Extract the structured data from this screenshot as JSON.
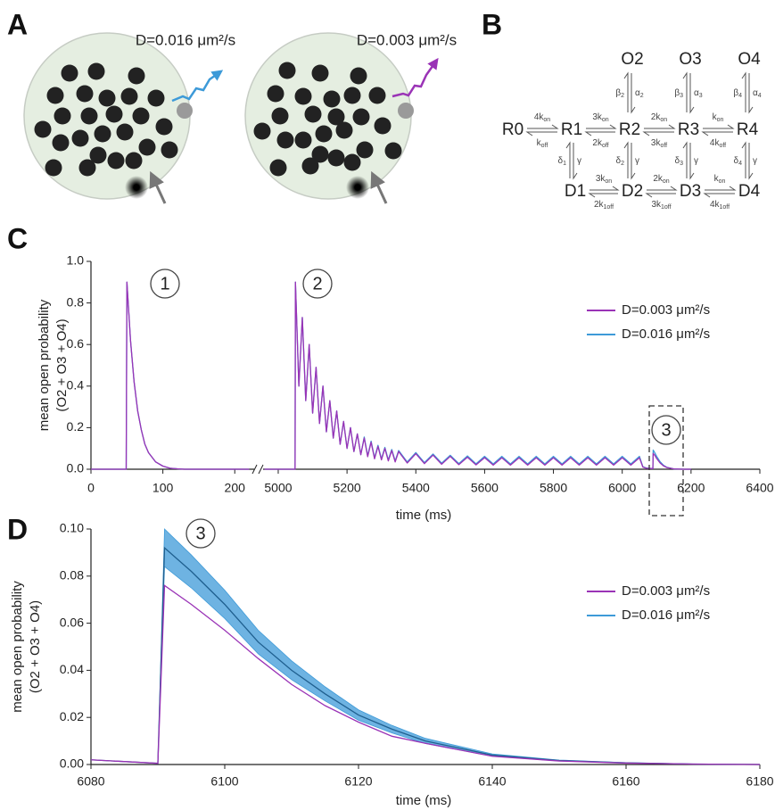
{
  "panel_labels": [
    "A",
    "B",
    "C",
    "D"
  ],
  "panel_a": {
    "captions": [
      "D=0.016 μm²/s",
      "D=0.003 μm²/s"
    ]
  },
  "panel_b": {
    "open_states": [
      "O2",
      "O3",
      "O4"
    ],
    "resting_states": [
      "R0",
      "R1",
      "R2",
      "R3",
      "R4"
    ],
    "desensitized_states": [
      "D1",
      "D2",
      "D3",
      "D4"
    ],
    "opening_rates": [
      [
        [
          "β",
          "2"
        ],
        [
          "α",
          "2"
        ]
      ],
      [
        [
          "β",
          "3"
        ],
        [
          "α",
          "3"
        ]
      ],
      [
        [
          "β",
          "4"
        ],
        [
          "α",
          "4"
        ]
      ]
    ],
    "binding_rates": [
      [
        [
          "4k",
          "on"
        ],
        [
          "k",
          "off"
        ]
      ],
      [
        [
          "3k",
          "on"
        ],
        [
          "2k",
          "off"
        ]
      ],
      [
        [
          "2k",
          "on"
        ],
        [
          "3k",
          "off"
        ]
      ],
      [
        [
          "k",
          "on"
        ],
        [
          "4k",
          "off"
        ]
      ]
    ],
    "desensitization_rates": [
      [
        [
          "δ",
          "1"
        ],
        [
          "γ"
        ]
      ],
      [
        [
          "δ",
          "2"
        ],
        [
          "γ"
        ]
      ],
      [
        [
          "δ",
          "3"
        ],
        [
          "γ"
        ]
      ],
      [
        [
          "δ",
          "4"
        ],
        [
          "γ"
        ]
      ]
    ],
    "desensitized_binding_rates": [
      [
        [
          "3k",
          "on"
        ],
        [
          "2k",
          "1off"
        ]
      ],
      [
        [
          "2k",
          "on"
        ],
        [
          "3k",
          "1off"
        ]
      ],
      [
        [
          "k",
          "on"
        ],
        [
          "4k",
          "1off"
        ]
      ]
    ]
  },
  "chart_data": [
    {
      "type": "line",
      "xlabel": "time (ms)",
      "ylabel": [
        "mean open probability",
        "(O2 + O3 + O4)"
      ],
      "x_segments": [
        {
          "xlim": [
            0,
            227
          ],
          "xticks": [
            0,
            100,
            200
          ]
        },
        {
          "xlim": [
            4956,
            6400
          ],
          "xticks": [
            5000,
            5200,
            5400,
            5600,
            5800,
            6000,
            6200,
            6400
          ]
        }
      ],
      "ylim": [
        0,
        1
      ],
      "yticks": [
        {
          "value": 0,
          "label": "0.0"
        },
        0.2,
        0.4,
        0.6,
        0.8,
        {
          "value": 1,
          "label": "1.0"
        }
      ],
      "annotations": [
        "1",
        "2",
        "3"
      ],
      "legend": "right",
      "x": [
        0,
        49,
        50,
        55,
        60,
        65,
        70,
        75,
        80,
        90,
        100,
        110,
        120,
        130,
        220,
        4960,
        5049,
        5050,
        5060,
        5070,
        5080,
        5090,
        5100,
        5110,
        5120,
        5130,
        5140,
        5150,
        5160,
        5170,
        5180,
        5190,
        5200,
        5210,
        5220,
        5230,
        5240,
        5250,
        5260,
        5270,
        5280,
        5290,
        5300,
        5310,
        5320,
        5330,
        5340,
        5350,
        5375,
        5400,
        5425,
        5450,
        5475,
        5500,
        5525,
        5550,
        5575,
        5600,
        5625,
        5650,
        5675,
        5700,
        5725,
        5750,
        5775,
        5800,
        5825,
        5850,
        5875,
        5900,
        5925,
        5950,
        5975,
        6000,
        6025,
        6050,
        6060,
        6070,
        6089,
        6090,
        6095,
        6100,
        6110,
        6120,
        6130,
        6150,
        6180,
        6200
      ],
      "series": [
        {
          "name": "D=0.003 μm²/s",
          "color": "#9a33b6",
          "values": [
            0,
            0,
            0.9,
            0.62,
            0.42,
            0.28,
            0.19,
            0.12,
            0.08,
            0.035,
            0.015,
            0.005,
            0.002,
            0,
            0,
            0,
            0,
            0.9,
            0.4,
            0.73,
            0.33,
            0.6,
            0.27,
            0.49,
            0.22,
            0.4,
            0.18,
            0.33,
            0.15,
            0.28,
            0.12,
            0.23,
            0.1,
            0.2,
            0.085,
            0.17,
            0.07,
            0.15,
            0.06,
            0.13,
            0.05,
            0.11,
            0.045,
            0.1,
            0.04,
            0.09,
            0.035,
            0.085,
            0.03,
            0.075,
            0.027,
            0.068,
            0.024,
            0.062,
            0.022,
            0.058,
            0.021,
            0.056,
            0.02,
            0.055,
            0.02,
            0.055,
            0.02,
            0.055,
            0.02,
            0.055,
            0.02,
            0.055,
            0.02,
            0.055,
            0.02,
            0.055,
            0.02,
            0.055,
            0.02,
            0.055,
            0.01,
            0.005,
            0.003,
            0.076,
            0.066,
            0.052,
            0.03,
            0.016,
            0.008,
            0.0015,
            0,
            0
          ]
        },
        {
          "name": "D=0.016 μm²/s",
          "color": "#3d9ad8",
          "values": [
            0,
            0,
            0.9,
            0.62,
            0.42,
            0.28,
            0.19,
            0.12,
            0.08,
            0.035,
            0.015,
            0.005,
            0.002,
            0,
            0,
            0,
            0,
            0.9,
            0.4,
            0.73,
            0.33,
            0.6,
            0.27,
            0.49,
            0.22,
            0.4,
            0.18,
            0.33,
            0.15,
            0.28,
            0.12,
            0.23,
            0.1,
            0.2,
            0.085,
            0.17,
            0.07,
            0.155,
            0.065,
            0.135,
            0.055,
            0.115,
            0.05,
            0.105,
            0.045,
            0.095,
            0.04,
            0.09,
            0.035,
            0.08,
            0.032,
            0.073,
            0.029,
            0.067,
            0.027,
            0.064,
            0.026,
            0.062,
            0.025,
            0.062,
            0.025,
            0.062,
            0.025,
            0.062,
            0.025,
            0.062,
            0.025,
            0.062,
            0.025,
            0.062,
            0.025,
            0.062,
            0.025,
            0.062,
            0.025,
            0.062,
            0.012,
            0.006,
            0.003,
            0.092,
            0.078,
            0.062,
            0.036,
            0.019,
            0.009,
            0.0017,
            0,
            0
          ]
        }
      ]
    },
    {
      "type": "line",
      "xlabel": "time (ms)",
      "ylabel": [
        "mean open probability",
        "(O2 + O3 + O4)"
      ],
      "xlim": [
        6080,
        6180
      ],
      "xticks": [
        6080,
        6100,
        6120,
        6140,
        6160,
        6180
      ],
      "ylim": [
        0,
        0.1
      ],
      "yticks": [
        {
          "value": 0,
          "label": "0.00"
        },
        {
          "value": 0.02,
          "label": "0.02"
        },
        {
          "value": 0.04,
          "label": "0.04"
        },
        {
          "value": 0.06,
          "label": "0.06"
        },
        {
          "value": 0.08,
          "label": "0.08"
        },
        {
          "value": 0.1,
          "label": "0.10"
        }
      ],
      "annotations": [
        "3"
      ],
      "legend": "right",
      "x": [
        6080,
        6090,
        6091,
        6095,
        6100,
        6105,
        6110,
        6115,
        6120,
        6125,
        6130,
        6140,
        6150,
        6160,
        6170,
        6180
      ],
      "series": [
        {
          "name": "D=0.003 μm²/s",
          "color": "#9a33b6",
          "values": [
            0.002,
            0.0005,
            0.076,
            0.068,
            0.057,
            0.045,
            0.034,
            0.025,
            0.018,
            0.012,
            0.009,
            0.0035,
            0.0015,
            0.0006,
            0.0002,
            0
          ]
        },
        {
          "name": "D=0.016 μm²/s",
          "color": "#3d9ad8",
          "values": [
            0.002,
            0.0005,
            0.092,
            0.082,
            0.068,
            0.052,
            0.04,
            0.03,
            0.021,
            0.015,
            0.01,
            0.004,
            0.0017,
            0.0007,
            0.0002,
            0
          ],
          "errors": [
            0,
            0,
            0.008,
            0.007,
            0.006,
            0.005,
            0.004,
            0.003,
            0.0022,
            0.0016,
            0.0011,
            0.0005,
            0.0002,
            0.0001,
            0,
            0
          ]
        }
      ]
    }
  ]
}
